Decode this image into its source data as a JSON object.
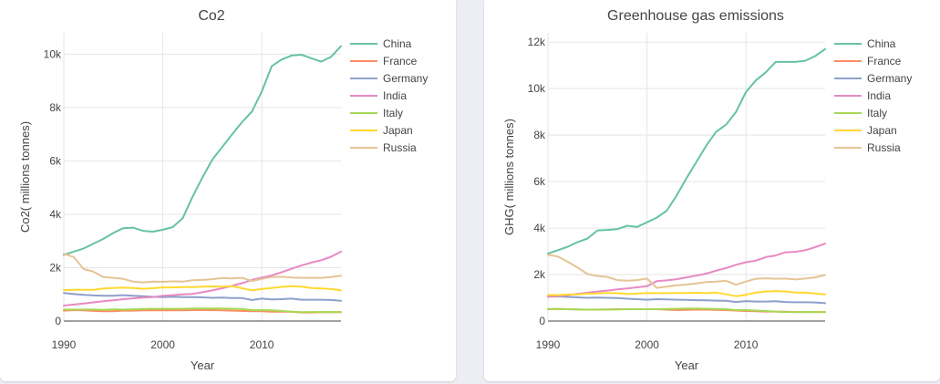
{
  "chart_data": [
    {
      "type": "line",
      "title": "Co2",
      "xlabel": "Year",
      "ylabel": "Co2( millions tonnes)",
      "xlim": [
        1990,
        2018
      ],
      "ylim": [
        0,
        10800
      ],
      "x_ticks": [
        1990,
        2000,
        2010
      ],
      "y_ticks": [
        0,
        2000,
        4000,
        6000,
        8000,
        10000
      ],
      "y_tick_labels": [
        "0",
        "2k",
        "4k",
        "6k",
        "8k",
        "10k"
      ],
      "grid": true,
      "legend_position": "right",
      "x": [
        1990,
        1991,
        1992,
        1993,
        1994,
        1995,
        1996,
        1997,
        1998,
        1999,
        2000,
        2001,
        2002,
        2003,
        2004,
        2005,
        2006,
        2007,
        2008,
        2009,
        2010,
        2011,
        2012,
        2013,
        2014,
        2015,
        2016,
        2017,
        2018
      ],
      "series": [
        {
          "name": "China",
          "color": "#66c2a5",
          "values": [
            2480,
            2600,
            2720,
            2900,
            3080,
            3300,
            3480,
            3500,
            3380,
            3350,
            3420,
            3520,
            3850,
            4650,
            5380,
            6050,
            6520,
            7000,
            7450,
            7850,
            8600,
            9550,
            9800,
            9950,
            9980,
            9850,
            9720,
            9900,
            10300
          ]
        },
        {
          "name": "France",
          "color": "#fc8d62",
          "values": [
            390,
            410,
            400,
            380,
            370,
            370,
            390,
            390,
            400,
            400,
            400,
            400,
            400,
            410,
            410,
            410,
            400,
            390,
            380,
            370,
            370,
            350,
            350,
            350,
            320,
            320,
            330,
            330,
            330
          ]
        },
        {
          "name": "Germany",
          "color": "#8da0cb",
          "values": [
            1050,
            1010,
            980,
            960,
            950,
            950,
            970,
            950,
            930,
            910,
            900,
            910,
            900,
            900,
            890,
            870,
            880,
            860,
            860,
            790,
            840,
            810,
            820,
            840,
            800,
            800,
            800,
            790,
            760
          ]
        },
        {
          "name": "India",
          "color": "#e78ac3",
          "values": [
            580,
            620,
            660,
            700,
            740,
            780,
            820,
            850,
            880,
            900,
            950,
            970,
            1000,
            1020,
            1080,
            1150,
            1230,
            1320,
            1420,
            1540,
            1630,
            1710,
            1830,
            1960,
            2080,
            2190,
            2280,
            2410,
            2600
          ]
        },
        {
          "name": "Italy",
          "color": "#a6d854",
          "values": [
            430,
            430,
            430,
            430,
            420,
            440,
            430,
            440,
            450,
            460,
            460,
            460,
            460,
            470,
            470,
            470,
            470,
            460,
            450,
            410,
            410,
            400,
            380,
            350,
            330,
            340,
            340,
            340,
            340
          ]
        },
        {
          "name": "Japan",
          "color": "#ffd92f",
          "values": [
            1160,
            1170,
            1170,
            1170,
            1220,
            1240,
            1250,
            1240,
            1210,
            1230,
            1260,
            1260,
            1270,
            1270,
            1290,
            1300,
            1290,
            1310,
            1230,
            1150,
            1200,
            1240,
            1280,
            1310,
            1290,
            1240,
            1220,
            1200,
            1150
          ]
        },
        {
          "name": "Russia",
          "color": "#e5c494",
          "values": [
            2520,
            2400,
            1950,
            1850,
            1650,
            1620,
            1580,
            1480,
            1450,
            1480,
            1470,
            1490,
            1480,
            1530,
            1540,
            1570,
            1610,
            1600,
            1620,
            1500,
            1580,
            1650,
            1660,
            1630,
            1620,
            1620,
            1620,
            1650,
            1700
          ]
        }
      ]
    },
    {
      "type": "line",
      "title": "Greenhouse gas emissions",
      "xlabel": "Year",
      "ylabel": "GHG( millions tonnes)",
      "xlim": [
        1990,
        2018
      ],
      "ylim": [
        0,
        12400
      ],
      "x_ticks": [
        1990,
        2000,
        2010
      ],
      "y_ticks": [
        0,
        2000,
        4000,
        6000,
        8000,
        10000,
        12000
      ],
      "y_tick_labels": [
        "0",
        "2k",
        "4k",
        "6k",
        "8k",
        "10k",
        "12k"
      ],
      "grid": true,
      "legend_position": "right",
      "x": [
        1990,
        1991,
        1992,
        1993,
        1994,
        1995,
        1996,
        1997,
        1998,
        1999,
        2000,
        2001,
        2002,
        2003,
        2004,
        2005,
        2006,
        2007,
        2008,
        2009,
        2010,
        2011,
        2012,
        2013,
        2014,
        2015,
        2016,
        2017,
        2018
      ],
      "series": [
        {
          "name": "China",
          "color": "#66c2a5",
          "values": [
            2900,
            3050,
            3200,
            3400,
            3550,
            3900,
            3920,
            3950,
            4100,
            4050,
            4250,
            4450,
            4750,
            5400,
            6150,
            6850,
            7550,
            8150,
            8450,
            9000,
            9850,
            10350,
            10700,
            11150,
            11150,
            11150,
            11200,
            11400,
            11700
          ]
        },
        {
          "name": "France",
          "color": "#fc8d62",
          "values": [
            510,
            520,
            510,
            500,
            490,
            490,
            500,
            510,
            510,
            510,
            510,
            510,
            490,
            470,
            480,
            490,
            490,
            480,
            470,
            450,
            430,
            420,
            410,
            410,
            400,
            390,
            390,
            390,
            390
          ]
        },
        {
          "name": "Germany",
          "color": "#8da0cb",
          "values": [
            1050,
            1060,
            1040,
            1020,
            1000,
            1010,
            1000,
            990,
            960,
            940,
            920,
            940,
            930,
            920,
            910,
            900,
            890,
            880,
            870,
            820,
            860,
            840,
            840,
            850,
            820,
            810,
            810,
            800,
            770
          ]
        },
        {
          "name": "India",
          "color": "#e78ac3",
          "values": [
            1050,
            1080,
            1120,
            1170,
            1220,
            1270,
            1310,
            1360,
            1400,
            1450,
            1500,
            1720,
            1750,
            1800,
            1880,
            1960,
            2040,
            2170,
            2280,
            2420,
            2530,
            2600,
            2750,
            2820,
            2960,
            2980,
            3050,
            3180,
            3330
          ]
        },
        {
          "name": "Italy",
          "color": "#a6d854",
          "values": [
            520,
            520,
            510,
            500,
            490,
            500,
            490,
            500,
            510,
            510,
            510,
            510,
            520,
            530,
            540,
            540,
            530,
            520,
            510,
            470,
            470,
            450,
            430,
            410,
            390,
            390,
            390,
            390,
            390
          ]
        },
        {
          "name": "Japan",
          "color": "#ffd92f",
          "values": [
            1120,
            1120,
            1140,
            1140,
            1180,
            1190,
            1210,
            1200,
            1160,
            1180,
            1210,
            1200,
            1200,
            1210,
            1210,
            1220,
            1200,
            1230,
            1150,
            1070,
            1130,
            1230,
            1270,
            1290,
            1270,
            1230,
            1220,
            1190,
            1150
          ]
        },
        {
          "name": "Russia",
          "color": "#e5c494",
          "values": [
            2850,
            2780,
            2550,
            2300,
            2020,
            1940,
            1900,
            1760,
            1740,
            1760,
            1830,
            1430,
            1480,
            1540,
            1570,
            1620,
            1680,
            1700,
            1730,
            1560,
            1700,
            1820,
            1840,
            1820,
            1830,
            1790,
            1830,
            1880,
            1980
          ]
        }
      ]
    }
  ]
}
